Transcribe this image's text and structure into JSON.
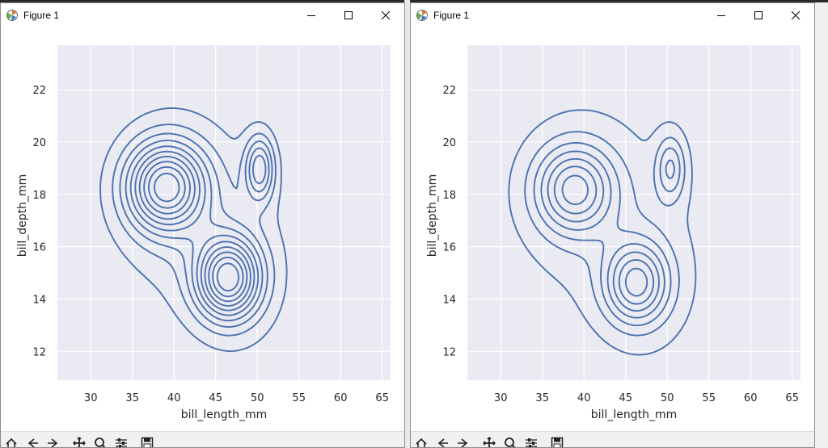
{
  "windows": [
    {
      "title": "Figure 1",
      "chart_data": {
        "type": "kde-contour",
        "xlabel": "bill_length_mm",
        "ylabel": "bill_depth_mm",
        "xlim": [
          26,
          66
        ],
        "ylim": [
          10.9,
          23.7
        ],
        "x_ticks": [
          "30",
          "35",
          "40",
          "45",
          "50",
          "55",
          "60",
          "65"
        ],
        "y_ticks": [
          "12",
          "14",
          "16",
          "18",
          "20",
          "22"
        ],
        "grid": true,
        "line_color": "#4c72b0",
        "background": "#eaeaf2",
        "peaks": [
          {
            "x": 39.0,
            "y": 18.3
          },
          {
            "x": 46.5,
            "y": 14.8
          },
          {
            "x": 50.3,
            "y": 19.0
          }
        ],
        "contour_levels": 10
      }
    },
    {
      "title": "Figure 1",
      "chart_data": {
        "type": "kde-contour",
        "xlabel": "bill_length_mm",
        "ylabel": "bill_depth_mm",
        "xlim": [
          26,
          66
        ],
        "ylim": [
          10.9,
          23.7
        ],
        "x_ticks": [
          "30",
          "35",
          "40",
          "45",
          "50",
          "55",
          "60",
          "65"
        ],
        "y_ticks": [
          "12",
          "14",
          "16",
          "18",
          "20",
          "22"
        ],
        "grid": true,
        "line_color": "#4c72b0",
        "background": "#eaeaf2",
        "peaks": [
          {
            "x": 38.8,
            "y": 18.2
          },
          {
            "x": 46.3,
            "y": 14.6
          },
          {
            "x": 50.4,
            "y": 19.0
          }
        ],
        "contour_levels": 7
      }
    }
  ],
  "toolbar_icons": [
    "home-icon",
    "back-icon",
    "forward-icon",
    "pan-icon",
    "zoom-icon",
    "configure-subplots-icon",
    "save-icon"
  ]
}
